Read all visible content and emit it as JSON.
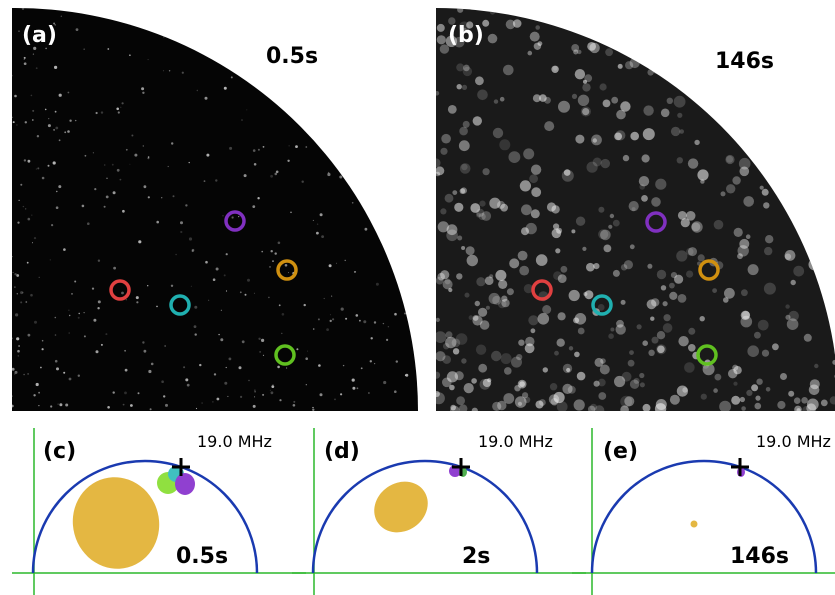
{
  "panels": [
    {
      "label": "(a)",
      "time": "0.5s"
    },
    {
      "label": "(b)",
      "time": "146s"
    },
    {
      "label": "(c)",
      "time": "0.5s",
      "frequency": "19.0 MHz"
    },
    {
      "label": "(d)",
      "time": "2s",
      "frequency": "19.0 MHz"
    },
    {
      "label": "(e)",
      "time": "146s",
      "frequency": "19.0 MHz"
    }
  ]
}
